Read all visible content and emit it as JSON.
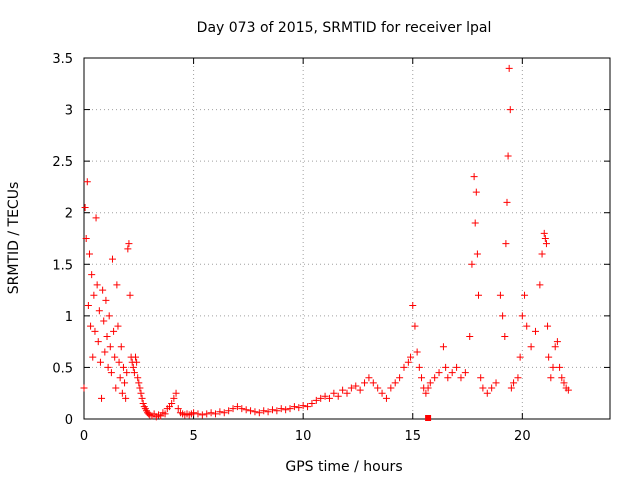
{
  "chart_data": {
    "type": "scatter",
    "title": "Day 073 of 2015, SRMTID for receiver lpal",
    "xlabel": "GPS time / hours",
    "ylabel": "SRMTID / TECUs",
    "xlim": [
      0,
      24
    ],
    "ylim": [
      0,
      3.5
    ],
    "xticks": [
      0,
      5,
      10,
      15,
      20
    ],
    "xtick_labels": [
      "0",
      "5",
      "10",
      "15",
      "20"
    ],
    "yticks": [
      0,
      0.5,
      1,
      1.5,
      2,
      2.5,
      3,
      3.5
    ],
    "ytick_labels": [
      "0",
      "0.5",
      "1",
      "1.5",
      "2",
      "2.5",
      "3",
      "3.5"
    ],
    "grid": true,
    "marker": "+",
    "color": "#ff0000",
    "series": [
      {
        "name": "SRMTID",
        "x": [
          0.0,
          0.05,
          0.1,
          0.15,
          0.2,
          0.25,
          0.3,
          0.35,
          0.4,
          0.45,
          0.5,
          0.55,
          0.6,
          0.65,
          0.7,
          0.75,
          0.8,
          0.85,
          0.9,
          0.95,
          1.0,
          1.05,
          1.1,
          1.15,
          1.2,
          1.25,
          1.3,
          1.35,
          1.4,
          1.45,
          1.5,
          1.55,
          1.6,
          1.65,
          1.7,
          1.75,
          1.8,
          1.85,
          1.9,
          1.95,
          2.0,
          2.05,
          2.1,
          2.15,
          2.2,
          2.25,
          2.3,
          2.35,
          2.4,
          2.45,
          2.5,
          2.55,
          2.6,
          2.65,
          2.7,
          2.75,
          2.8,
          2.85,
          2.9,
          2.95,
          3.0,
          3.1,
          3.2,
          3.3,
          3.4,
          3.5,
          3.6,
          3.7,
          3.8,
          3.9,
          4.0,
          4.1,
          4.2,
          4.3,
          4.4,
          4.5,
          4.6,
          4.7,
          4.8,
          4.9,
          5.0,
          5.2,
          5.4,
          5.6,
          5.8,
          6.0,
          6.2,
          6.4,
          6.6,
          6.8,
          7.0,
          7.2,
          7.4,
          7.6,
          7.8,
          8.0,
          8.2,
          8.4,
          8.6,
          8.8,
          9.0,
          9.2,
          9.4,
          9.6,
          9.8,
          10.0,
          10.2,
          10.4,
          10.6,
          10.8,
          11.0,
          11.2,
          11.4,
          11.6,
          11.8,
          12.0,
          12.2,
          12.4,
          12.6,
          12.8,
          13.0,
          13.2,
          13.4,
          13.6,
          13.8,
          14.0,
          14.2,
          14.4,
          14.6,
          14.8,
          14.9,
          15.0,
          15.1,
          15.2,
          15.3,
          15.4,
          15.5,
          15.6,
          15.7,
          15.8,
          16.0,
          16.2,
          16.4,
          16.5,
          16.6,
          16.8,
          17.0,
          17.2,
          17.4,
          17.6,
          17.7,
          17.8,
          17.85,
          17.9,
          17.95,
          18.0,
          18.1,
          18.2,
          18.4,
          18.6,
          18.8,
          19.0,
          19.1,
          19.2,
          19.25,
          19.3,
          19.35,
          19.4,
          19.45,
          19.5,
          19.6,
          19.8,
          19.9,
          20.0,
          20.1,
          20.2,
          20.4,
          20.6,
          20.8,
          20.9,
          21.0,
          21.05,
          21.1,
          21.15,
          21.2,
          21.3,
          21.4,
          21.5,
          21.6,
          21.7,
          21.8,
          21.9,
          22.0,
          22.1
        ],
        "y": [
          0.3,
          2.05,
          1.75,
          2.3,
          1.1,
          1.6,
          0.9,
          1.4,
          0.6,
          1.2,
          0.85,
          1.95,
          1.3,
          0.75,
          1.05,
          0.55,
          0.2,
          1.25,
          0.95,
          0.65,
          1.15,
          0.8,
          0.5,
          1.0,
          0.7,
          0.45,
          1.55,
          0.85,
          0.6,
          0.3,
          1.3,
          0.9,
          0.55,
          0.4,
          0.7,
          0.25,
          0.5,
          0.35,
          0.2,
          0.45,
          1.65,
          1.7,
          1.2,
          0.6,
          0.55,
          0.5,
          0.45,
          0.6,
          0.55,
          0.4,
          0.35,
          0.3,
          0.25,
          0.2,
          0.15,
          0.12,
          0.1,
          0.08,
          0.06,
          0.05,
          0.04,
          0.03,
          0.05,
          0.02,
          0.04,
          0.03,
          0.06,
          0.05,
          0.1,
          0.12,
          0.15,
          0.2,
          0.25,
          0.1,
          0.06,
          0.05,
          0.04,
          0.05,
          0.04,
          0.05,
          0.06,
          0.05,
          0.04,
          0.05,
          0.06,
          0.05,
          0.07,
          0.06,
          0.08,
          0.1,
          0.12,
          0.1,
          0.09,
          0.08,
          0.07,
          0.06,
          0.08,
          0.07,
          0.09,
          0.08,
          0.1,
          0.09,
          0.1,
          0.12,
          0.11,
          0.13,
          0.12,
          0.15,
          0.18,
          0.2,
          0.22,
          0.2,
          0.25,
          0.22,
          0.28,
          0.25,
          0.3,
          0.32,
          0.28,
          0.35,
          0.4,
          0.35,
          0.3,
          0.25,
          0.2,
          0.3,
          0.35,
          0.4,
          0.5,
          0.55,
          0.6,
          1.1,
          0.9,
          0.65,
          0.5,
          0.4,
          0.3,
          0.25,
          0.3,
          0.35,
          0.4,
          0.45,
          0.7,
          0.5,
          0.4,
          0.45,
          0.5,
          0.4,
          0.45,
          0.8,
          1.5,
          2.35,
          1.9,
          2.2,
          1.6,
          1.2,
          0.4,
          0.3,
          0.25,
          0.3,
          0.35,
          1.2,
          1.0,
          0.8,
          1.7,
          2.1,
          2.55,
          3.4,
          3.0,
          0.3,
          0.35,
          0.4,
          0.6,
          1.0,
          1.2,
          0.9,
          0.7,
          0.85,
          1.3,
          1.6,
          1.8,
          1.75,
          1.7,
          0.9,
          0.6,
          0.4,
          0.5,
          0.7,
          0.75,
          0.5,
          0.4,
          0.35,
          0.3,
          0.28
        ]
      }
    ],
    "annotations": [
      {
        "text": "square marker",
        "x": 15.7,
        "y": 0.0
      }
    ]
  }
}
